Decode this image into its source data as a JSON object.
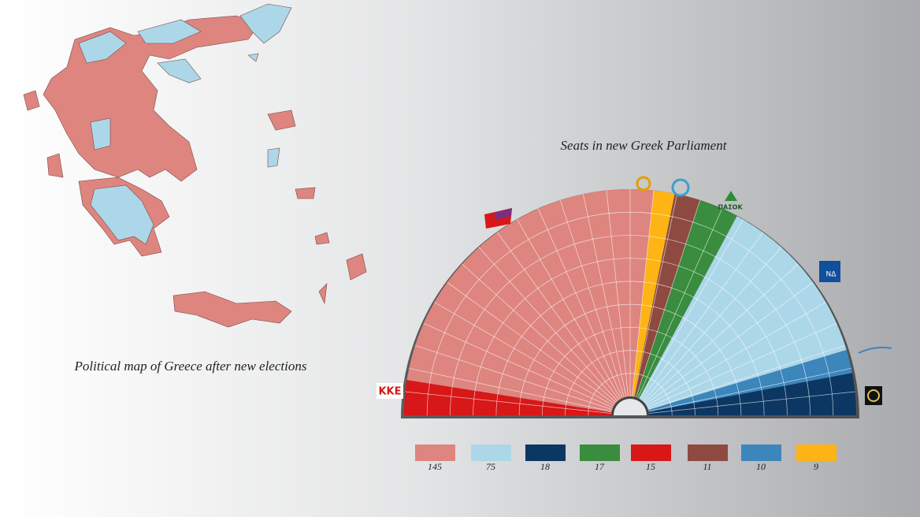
{
  "map_caption": "Political map of Greece after new elections",
  "logos": {
    "kke": "ΚΚΕ",
    "pasok": "ΠΑΣΟΚ",
    "nd": "ΝΔ"
  },
  "chart_data": {
    "type": "parliament",
    "title": "Seats in new Greek Parliament",
    "series": [
      {
        "color": "#de8580",
        "values": [
          145
        ]
      },
      {
        "color": "#acd7e8",
        "values": [
          75
        ]
      },
      {
        "color": "#0c3762",
        "values": [
          18
        ]
      },
      {
        "color": "#3a8c3f",
        "values": [
          17
        ]
      },
      {
        "color": "#d71718",
        "values": [
          15
        ]
      },
      {
        "color": "#8e4a40",
        "values": [
          11
        ]
      },
      {
        "color": "#3c86bc",
        "values": [
          10
        ]
      },
      {
        "color": "#fdb414",
        "values": [
          9
        ]
      }
    ]
  }
}
